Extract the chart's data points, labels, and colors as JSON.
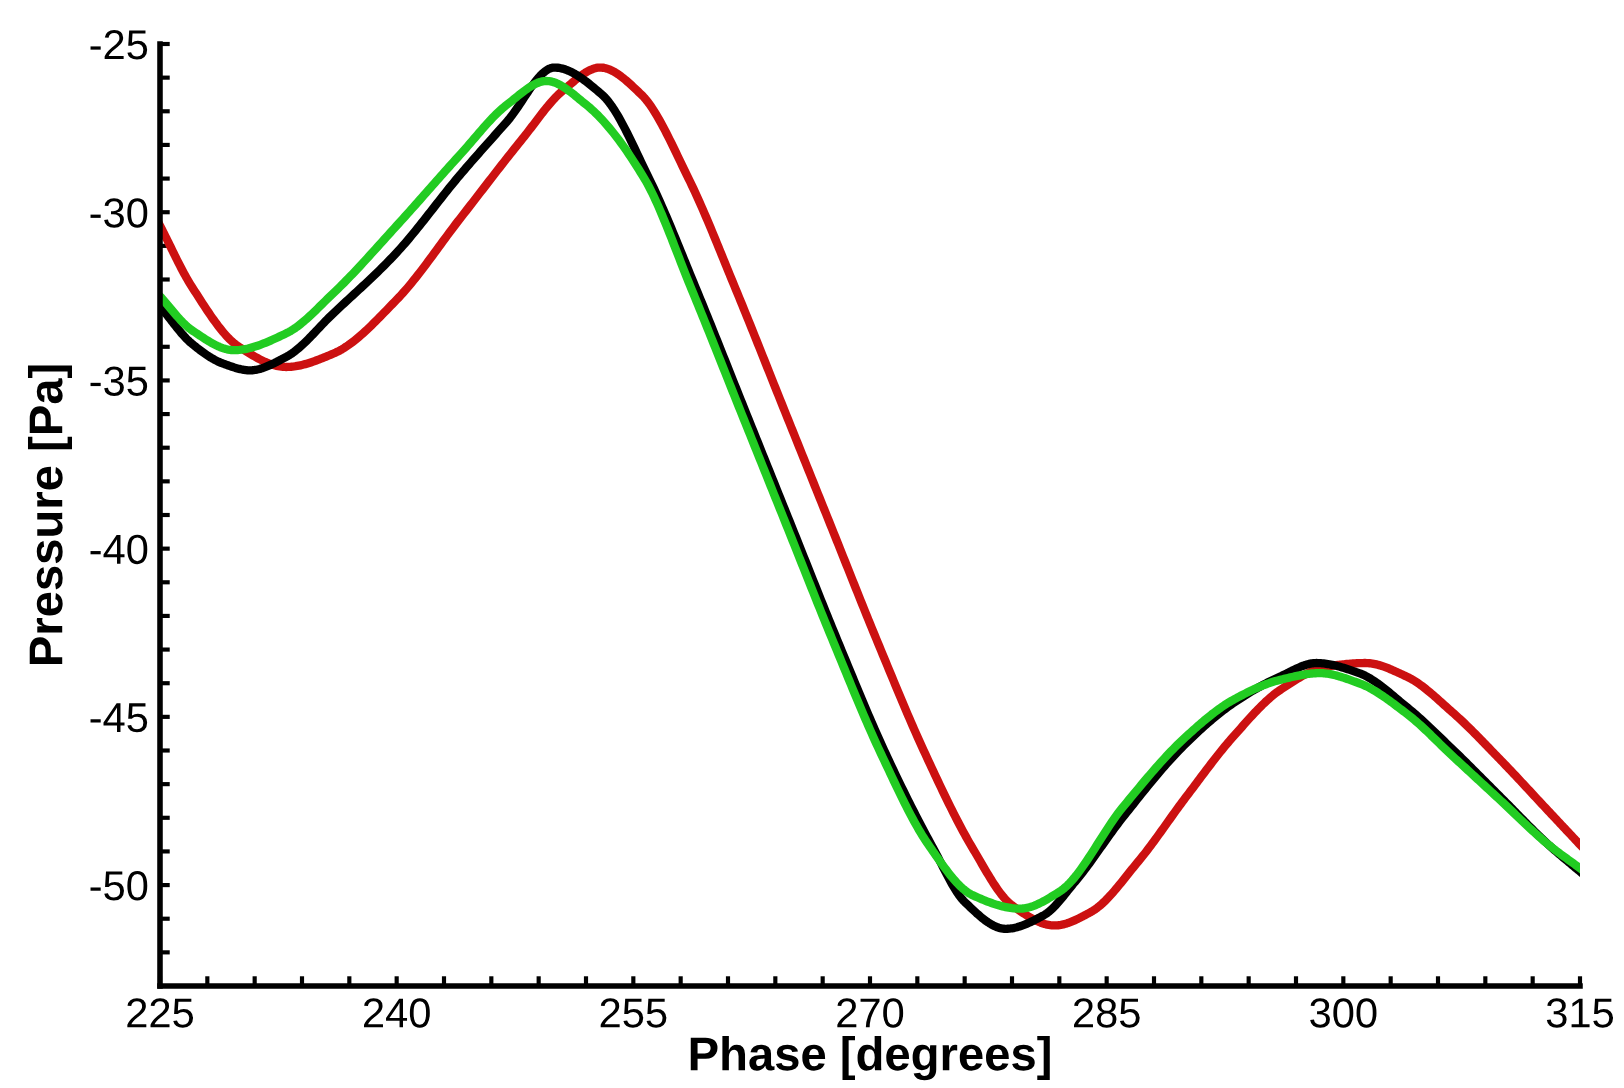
{
  "chart_data": {
    "type": "line",
    "xlabel": "Phase [degrees]",
    "ylabel": "Pressure [Pa]",
    "xlim": [
      225,
      315
    ],
    "ylim": [
      -53,
      -25
    ],
    "xticks": [
      225,
      {
        "value": 228,
        "label": null
      },
      {
        "value": 231,
        "label": null
      },
      {
        "value": 234,
        "label": null
      },
      {
        "value": 237,
        "label": null
      },
      240,
      {
        "value": 243,
        "label": null
      },
      {
        "value": 246,
        "label": null
      },
      {
        "value": 249,
        "label": null
      },
      {
        "value": 252,
        "label": null
      },
      255,
      {
        "value": 258,
        "label": null
      },
      {
        "value": 261,
        "label": null
      },
      {
        "value": 264,
        "label": null
      },
      {
        "value": 267,
        "label": null
      },
      270,
      {
        "value": 273,
        "label": null
      },
      {
        "value": 276,
        "label": null
      },
      {
        "value": 279,
        "label": null
      },
      {
        "value": 282,
        "label": null
      },
      285,
      {
        "value": 288,
        "label": null
      },
      {
        "value": 291,
        "label": null
      },
      {
        "value": 294,
        "label": null
      },
      {
        "value": 297,
        "label": null
      },
      300,
      {
        "value": 303,
        "label": null
      },
      {
        "value": 306,
        "label": null
      },
      {
        "value": 309,
        "label": null
      },
      {
        "value": 312,
        "label": null
      },
      315
    ],
    "yticks": [
      {
        "value": -52,
        "label": null
      },
      {
        "value": -51,
        "label": null
      },
      -50,
      {
        "value": -49,
        "label": null
      },
      {
        "value": -48,
        "label": null
      },
      {
        "value": -47,
        "label": null
      },
      {
        "value": -46,
        "label": null
      },
      -45,
      {
        "value": -44,
        "label": null
      },
      {
        "value": -43,
        "label": null
      },
      {
        "value": -42,
        "label": null
      },
      {
        "value": -41,
        "label": null
      },
      -40,
      {
        "value": -39,
        "label": null
      },
      {
        "value": -38,
        "label": null
      },
      {
        "value": -37,
        "label": null
      },
      {
        "value": -36,
        "label": null
      },
      -35,
      {
        "value": -34,
        "label": null
      },
      {
        "value": -33,
        "label": null
      },
      {
        "value": -32,
        "label": null
      },
      {
        "value": -31,
        "label": null
      },
      -30,
      {
        "value": -29,
        "label": null
      },
      {
        "value": -28,
        "label": null
      },
      {
        "value": -27,
        "label": null
      },
      {
        "value": -26,
        "label": null
      },
      -25
    ],
    "grid": false,
    "marker": "none",
    "line_style": "solid",
    "series": [
      {
        "color": "#cc1111",
        "x": [
          225,
          227,
          230,
          233,
          236,
          240,
          244,
          248,
          250.5,
          252.9,
          255.5,
          258.5,
          261.5,
          264.5,
          267.5,
          270.5,
          273.5,
          276.5,
          279,
          281.7,
          284,
          287,
          290,
          293,
          296,
          299,
          301.4,
          304,
          307,
          310,
          313,
          315
        ],
        "values": [
          -30.4,
          -32.2,
          -34.0,
          -34.6,
          -34.2,
          -32.6,
          -30.2,
          -27.8,
          -26.4,
          -25.7,
          -26.5,
          -29.0,
          -32.3,
          -35.8,
          -39.3,
          -42.8,
          -46.1,
          -48.9,
          -50.6,
          -51.2,
          -50.8,
          -49.3,
          -47.4,
          -45.6,
          -44.2,
          -43.5,
          -43.4,
          -43.8,
          -44.9,
          -46.3,
          -47.8,
          -48.8
        ]
      },
      {
        "color": "#000000",
        "x": [
          225,
          227,
          229,
          230.7,
          233,
          236,
          240,
          244,
          247,
          250,
          253,
          256,
          259,
          262,
          265,
          268,
          271,
          274,
          276,
          278.6,
          281,
          283,
          286,
          290,
          293,
          296,
          298.3,
          301,
          304,
          307,
          310,
          313,
          315
        ],
        "values": [
          -32.8,
          -33.9,
          -34.5,
          -34.7,
          -34.3,
          -33.0,
          -31.2,
          -28.9,
          -27.3,
          -25.7,
          -26.5,
          -29.0,
          -32.3,
          -35.8,
          -39.3,
          -42.8,
          -46.1,
          -48.9,
          -50.5,
          -51.3,
          -50.9,
          -49.9,
          -48.0,
          -45.8,
          -44.6,
          -43.8,
          -43.4,
          -43.7,
          -44.7,
          -46.0,
          -47.4,
          -48.8,
          -49.6
        ]
      },
      {
        "color": "#22cc22",
        "x": [
          225,
          227,
          229.7,
          233,
          236,
          240,
          244,
          247,
          249.5,
          252,
          255.7,
          258.7,
          261.7,
          264.7,
          267.7,
          270.7,
          273.7,
          276.5,
          279.5,
          282,
          286,
          290,
          293,
          296,
          298.5,
          301,
          304,
          307,
          310,
          313,
          315
        ],
        "values": [
          -32.5,
          -33.5,
          -34.1,
          -33.6,
          -32.4,
          -30.4,
          -28.3,
          -26.8,
          -26.1,
          -26.8,
          -29.0,
          -32.3,
          -35.8,
          -39.3,
          -42.8,
          -46.1,
          -48.8,
          -50.3,
          -50.7,
          -50.2,
          -47.7,
          -45.6,
          -44.5,
          -43.9,
          -43.7,
          -44.0,
          -44.9,
          -46.2,
          -47.5,
          -48.8,
          -49.5
        ]
      }
    ]
  }
}
